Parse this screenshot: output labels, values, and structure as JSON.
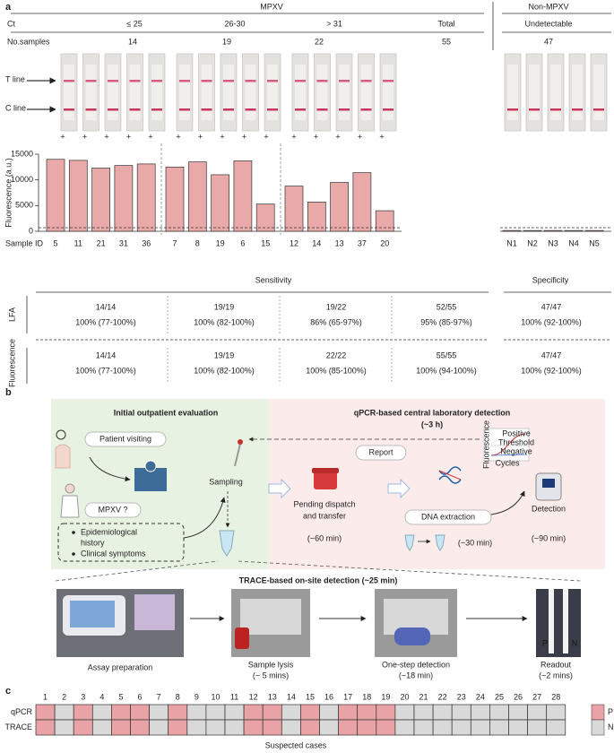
{
  "panel_a": {
    "label": "a",
    "group_headers": [
      "MPXV",
      "Non-MPXV"
    ],
    "ct_row": [
      "Ct",
      "≤ 25",
      "26-30",
      "> 31",
      "Total",
      "Undetectable"
    ],
    "samples_label": "No.samples",
    "samples": [
      14,
      19,
      22,
      55,
      47
    ],
    "strip_labels": [
      "T line",
      "C line"
    ],
    "strip_results": [
      "+",
      "+",
      "+",
      "+",
      "+",
      "+",
      "+",
      "+",
      "+",
      "+",
      "+",
      "+",
      "+",
      "+",
      "+"
    ]
  },
  "chart_data": {
    "type": "bar",
    "y_label": "Fluorescence (a.u.)",
    "x_label": "Sample ID",
    "categories": [
      "5",
      "11",
      "21",
      "31",
      "36",
      "7",
      "8",
      "19",
      "6",
      "15",
      "12",
      "14",
      "13",
      "37",
      "20"
    ],
    "values": [
      14000,
      13800,
      12300,
      12800,
      13100,
      12500,
      13500,
      11000,
      13700,
      5300,
      8800,
      5700,
      9500,
      11400,
      4000
    ],
    "control_categories": [
      "N1",
      "N2",
      "N3",
      "N4",
      "N5"
    ],
    "control_values": [
      150,
      150,
      150,
      150,
      150
    ],
    "threshold": 700,
    "color": "#e9a9a9",
    "ylim": [
      0,
      15000
    ],
    "yticks": [
      0,
      5000,
      10000,
      15000
    ]
  },
  "performance": {
    "sensitivity": "Sensitivity",
    "specificity": "Specificity",
    "rows": [
      {
        "name": "LFA",
        "cells": [
          [
            "14/14",
            "100% (77-100%)"
          ],
          [
            "19/19",
            "100% (82-100%)"
          ],
          [
            "19/22",
            "86% (65-97%)"
          ],
          [
            "52/55",
            "95% (85-97%)"
          ],
          [
            "47/47",
            "100% (92-100%)"
          ]
        ]
      },
      {
        "name": "Fluorescence",
        "cells": [
          [
            "14/14",
            "100% (77-100%)"
          ],
          [
            "19/19",
            "100% (82-100%)"
          ],
          [
            "22/22",
            "100% (85-100%)"
          ],
          [
            "55/55",
            "100% (94-100%)"
          ],
          [
            "47/47",
            "100% (92-100%)"
          ]
        ]
      }
    ]
  },
  "panel_b": {
    "label": "b",
    "outpatient_title": "Initial outpatient evaluation",
    "lab_title": "qPCR-based central laboratory detection",
    "lab_time": "(~3 h)",
    "patient": "Patient visiting",
    "sampling": "Sampling",
    "question": "MPXV ?",
    "symptoms": [
      "Epidemiological",
      "history",
      "Clinical symptoms"
    ],
    "report": "Report",
    "dispatch": [
      "Pending dispatch",
      "and transfer"
    ],
    "dispatch_time": "(~60 min)",
    "extraction": "DNA extraction",
    "extraction_time": "(~30 min)",
    "detection": "Detection",
    "detection_time": "(~90 min)",
    "curve_labels": {
      "y": "Fluorescence",
      "positive": "Positive",
      "threshold": "Threshold",
      "negative": "Negative",
      "x": "Cycles"
    },
    "trace_title": "TRACE-based on-site detection (~25 min)",
    "steps": [
      {
        "name": "Assay preparation"
      },
      {
        "name": "Sample lysis",
        "time": "(~ 5 mins)"
      },
      {
        "name": "One-step detection",
        "time": "(~18 min)"
      },
      {
        "name": "Readout",
        "time": "(~2 mins)"
      }
    ],
    "readout_labels": [
      "P",
      "N"
    ]
  },
  "panel_c": {
    "label": "c",
    "cases": [
      1,
      2,
      3,
      4,
      5,
      6,
      7,
      8,
      9,
      10,
      11,
      12,
      13,
      14,
      15,
      16,
      17,
      18,
      19,
      20,
      21,
      22,
      23,
      24,
      25,
      26,
      27,
      28
    ],
    "rows": [
      {
        "name": "qPCR",
        "positive": [
          true,
          false,
          true,
          false,
          true,
          true,
          false,
          true,
          false,
          false,
          false,
          true,
          true,
          false,
          true,
          false,
          true,
          true,
          true,
          false,
          false,
          false,
          false,
          false,
          false,
          false,
          false,
          false
        ]
      },
      {
        "name": "TRACE",
        "positive": [
          true,
          false,
          true,
          false,
          true,
          true,
          false,
          true,
          false,
          false,
          false,
          true,
          true,
          false,
          true,
          false,
          true,
          true,
          true,
          false,
          false,
          false,
          false,
          false,
          false,
          false,
          false,
          false
        ]
      }
    ],
    "x_label": "Suspected cases",
    "legend": [
      "P",
      "N"
    ],
    "colors": [
      "#e9a3a6",
      "#d9d9d9"
    ]
  }
}
